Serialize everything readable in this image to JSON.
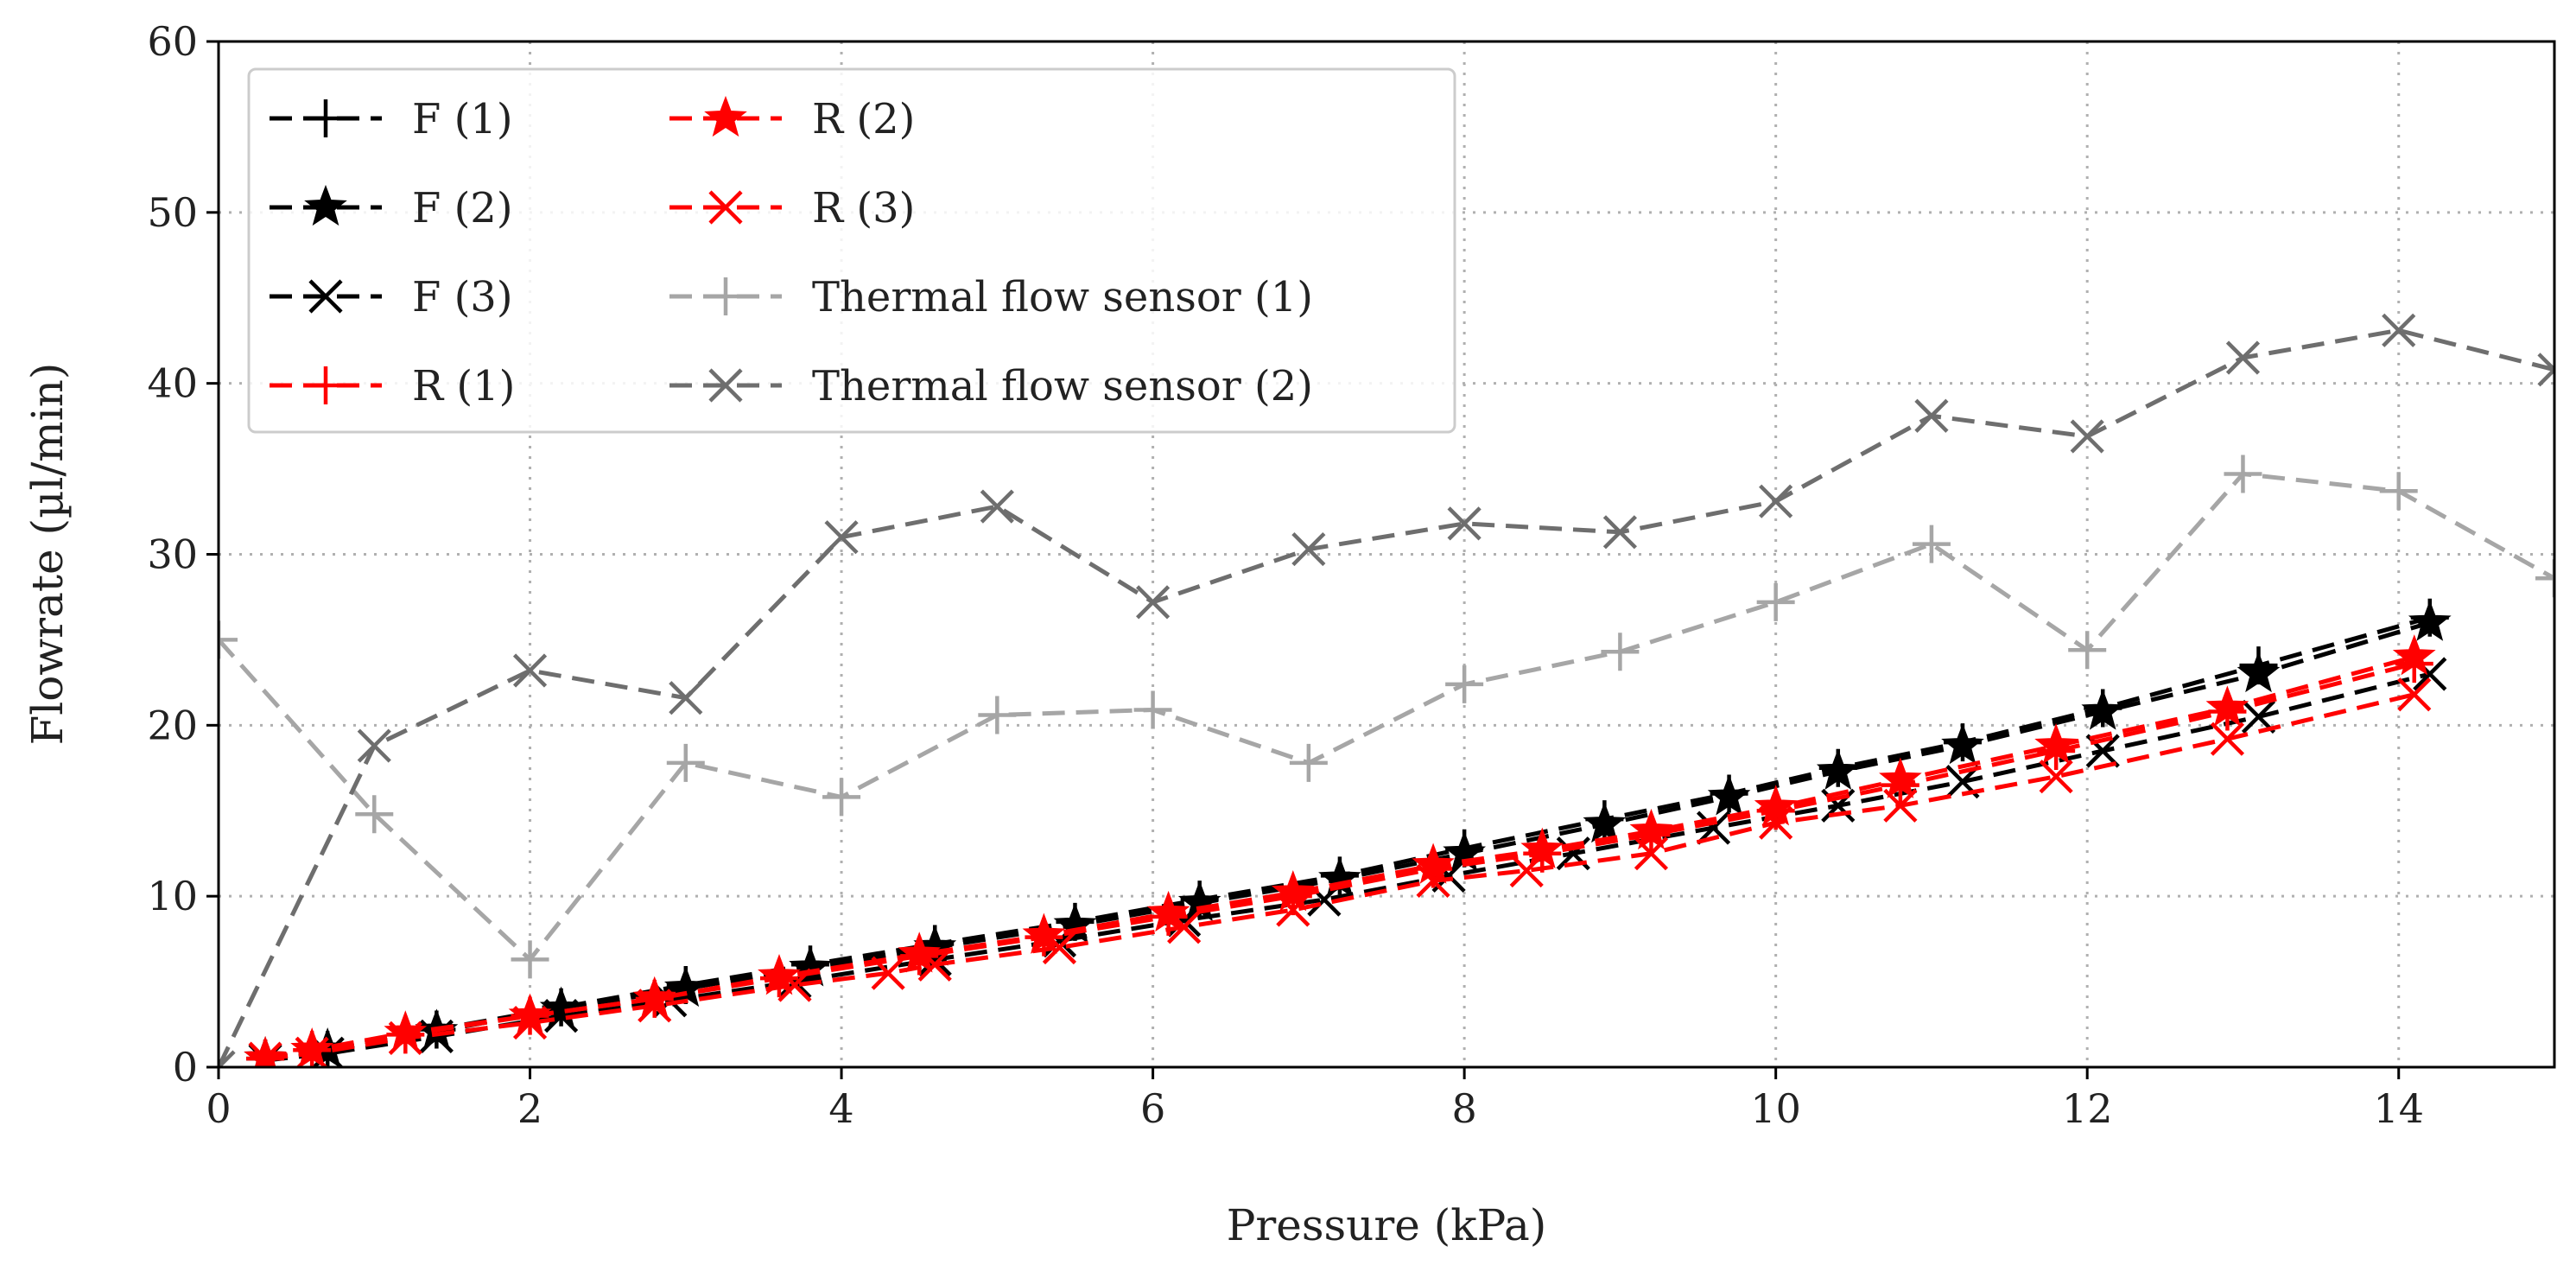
{
  "chart_data": {
    "type": "line",
    "title": "",
    "xlabel": "Pressure (kPa)",
    "ylabel": "Flowrate (µl/min)",
    "xlim": [
      0,
      15
    ],
    "ylim": [
      0,
      60
    ],
    "xticks": [
      "0",
      "2",
      "4",
      "6",
      "8",
      "10",
      "12",
      "14"
    ],
    "yticks": [
      "0",
      "10",
      "20",
      "30",
      "40",
      "50",
      "60"
    ],
    "grid": true,
    "legend_position": "top-left",
    "legend_columns": 2,
    "series": [
      {
        "name": "F (1)",
        "color": "#000000",
        "marker": "plus",
        "x": [
          0.3,
          0.7,
          1.4,
          2.2,
          3.0,
          3.8,
          4.6,
          5.5,
          6.3,
          7.2,
          8.0,
          8.9,
          9.7,
          10.4,
          11.2,
          12.1,
          13.1,
          14.2
        ],
        "y": [
          0.5,
          1.0,
          2.2,
          3.5,
          4.8,
          6.0,
          7.2,
          8.5,
          9.8,
          11.2,
          12.8,
          14.5,
          16.0,
          17.5,
          19.0,
          21.0,
          23.5,
          26.3
        ]
      },
      {
        "name": "F (2)",
        "color": "#000000",
        "marker": "star",
        "x": [
          0.3,
          0.7,
          1.4,
          2.2,
          3.0,
          3.8,
          4.6,
          5.5,
          6.3,
          7.2,
          8.0,
          8.9,
          9.7,
          10.4,
          11.2,
          12.1,
          13.1,
          14.2
        ],
        "y": [
          0.5,
          1.0,
          2.1,
          3.4,
          4.6,
          5.8,
          7.0,
          8.3,
          9.6,
          11.0,
          12.5,
          14.2,
          15.8,
          17.3,
          18.8,
          20.8,
          23.0,
          26.0
        ]
      },
      {
        "name": "F (3)",
        "color": "#000000",
        "marker": "x",
        "x": [
          0.3,
          0.7,
          1.4,
          2.2,
          2.9,
          3.7,
          4.6,
          5.4,
          6.2,
          7.1,
          7.9,
          8.7,
          9.6,
          10.4,
          11.2,
          12.1,
          13.1,
          14.2
        ],
        "y": [
          0.4,
          0.8,
          1.8,
          3.0,
          3.9,
          5.0,
          6.3,
          7.4,
          8.6,
          9.8,
          11.2,
          12.5,
          14.0,
          15.3,
          16.7,
          18.5,
          20.5,
          23.0
        ]
      },
      {
        "name": "R (1)",
        "color": "#ff0000",
        "marker": "plus",
        "x": [
          0.3,
          0.6,
          1.2,
          2.0,
          2.8,
          3.6,
          4.5,
          5.3,
          6.1,
          6.9,
          7.8,
          8.5,
          9.2,
          10.0,
          10.8,
          11.8,
          12.9,
          14.1
        ],
        "y": [
          0.5,
          1.0,
          1.9,
          3.0,
          4.0,
          5.2,
          6.5,
          7.6,
          8.8,
          10.0,
          11.6,
          12.5,
          13.6,
          15.0,
          16.5,
          18.5,
          20.8,
          23.6
        ]
      },
      {
        "name": "R (2)",
        "color": "#ff0000",
        "marker": "star",
        "x": [
          0.3,
          0.6,
          1.2,
          2.0,
          2.8,
          3.6,
          4.5,
          5.3,
          6.1,
          6.9,
          7.8,
          8.5,
          9.2,
          10.0,
          10.8,
          11.8,
          12.9,
          14.1
        ],
        "y": [
          0.5,
          1.0,
          2.0,
          3.0,
          4.0,
          5.3,
          6.6,
          7.7,
          9.0,
          10.2,
          11.8,
          12.7,
          13.8,
          15.2,
          16.8,
          18.8,
          21.0,
          24.0
        ]
      },
      {
        "name": "R (3)",
        "color": "#ff0000",
        "marker": "x",
        "x": [
          0.3,
          0.6,
          1.2,
          2.0,
          2.8,
          3.7,
          4.3,
          4.6,
          5.4,
          6.2,
          6.9,
          7.8,
          8.4,
          9.2,
          10.0,
          10.8,
          11.8,
          12.9,
          14.1
        ],
        "y": [
          0.5,
          0.8,
          1.7,
          2.6,
          3.6,
          4.8,
          5.5,
          6.0,
          7.0,
          8.2,
          9.2,
          10.9,
          11.5,
          12.5,
          14.3,
          15.3,
          17.0,
          19.2,
          21.8
        ]
      },
      {
        "name": "Thermal flow sensor (1)",
        "color": "#a6a6a6",
        "marker": "plus",
        "x": [
          0,
          1,
          2,
          3,
          4,
          5,
          6,
          7,
          8,
          9,
          10,
          11,
          12,
          13,
          14,
          15
        ],
        "y": [
          25,
          14.8,
          6.3,
          17.8,
          15.8,
          20.6,
          20.9,
          17.8,
          22.4,
          24.3,
          27.2,
          30.6,
          24.4,
          34.7,
          33.7,
          28.6
        ]
      },
      {
        "name": "Thermal flow sensor (2)",
        "color": "#6e6e6e",
        "marker": "x",
        "x": [
          0,
          1,
          2,
          3,
          4,
          5,
          6,
          7,
          8,
          9,
          10,
          11,
          12,
          13,
          14,
          15
        ],
        "y": [
          0,
          18.8,
          23.2,
          21.6,
          31.0,
          32.8,
          27.2,
          30.3,
          31.8,
          31.3,
          33.1,
          38.1,
          36.9,
          41.5,
          43.1,
          40.8
        ]
      }
    ]
  }
}
